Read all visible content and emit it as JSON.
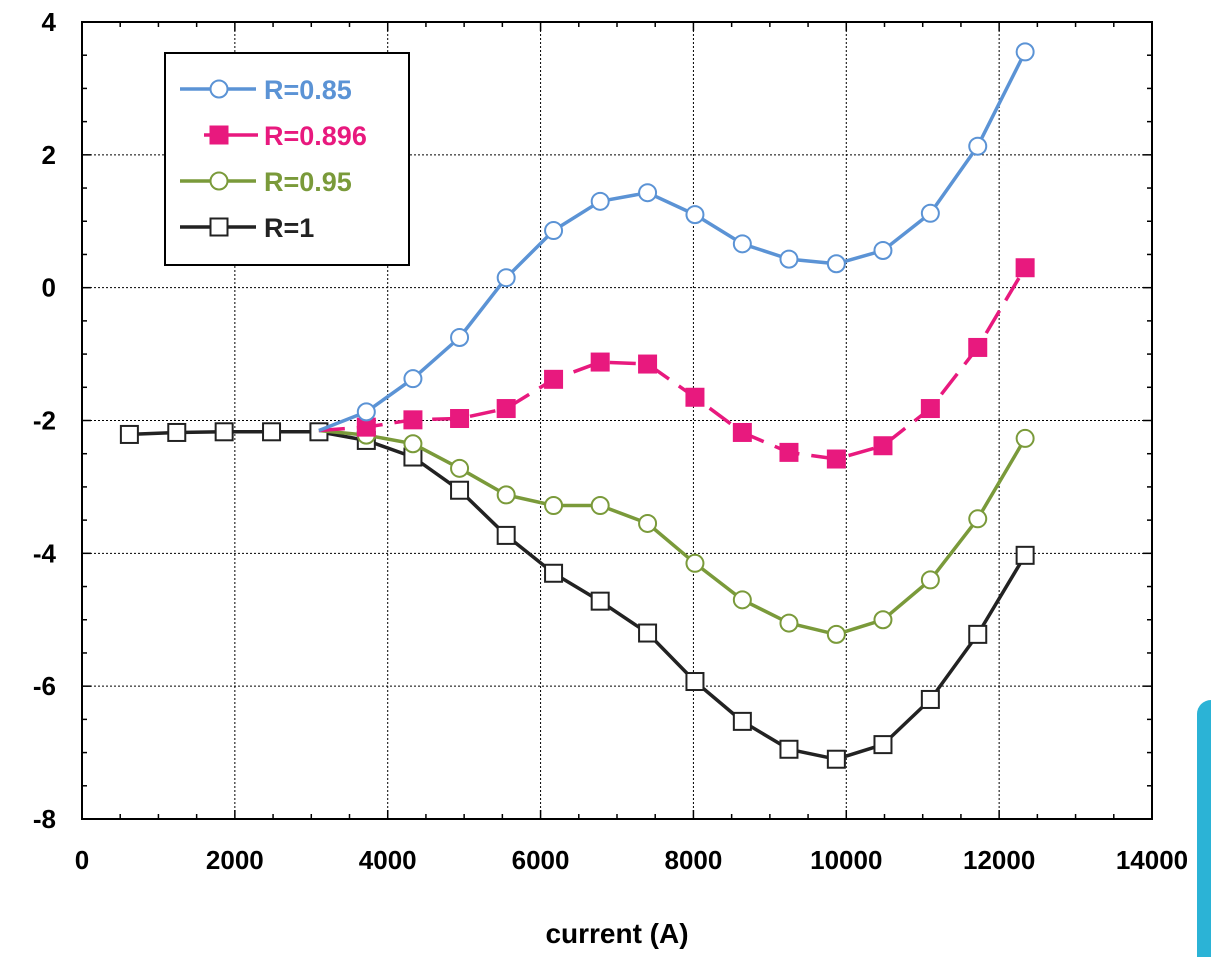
{
  "chart_data": {
    "type": "line",
    "title": "",
    "xlabel": "current (A)",
    "ylabel": "",
    "xlim": [
      0,
      14000
    ],
    "ylim": [
      -8,
      4
    ],
    "xticks": [
      0,
      2000,
      4000,
      6000,
      8000,
      10000,
      12000,
      14000
    ],
    "yticks": [
      -8,
      -6,
      -4,
      -2,
      0,
      2,
      4
    ],
    "grid": true,
    "legend_position": "top-left",
    "series": [
      {
        "name": "R=0.85",
        "color": "#5b93d5",
        "marker": "open-circle",
        "line_style": "solid",
        "points": [
          [
            3100,
            -2.15
          ],
          [
            3720,
            -1.87
          ],
          [
            4330,
            -1.37
          ],
          [
            4940,
            -0.75
          ],
          [
            5550,
            0.15
          ],
          [
            6170,
            0.86
          ],
          [
            6780,
            1.3
          ],
          [
            7400,
            1.43
          ],
          [
            8020,
            1.1
          ],
          [
            8640,
            0.66
          ],
          [
            9250,
            0.43
          ],
          [
            9870,
            0.36
          ],
          [
            10480,
            0.56
          ],
          [
            11100,
            1.12
          ],
          [
            11720,
            2.13
          ],
          [
            12340,
            3.55
          ]
        ]
      },
      {
        "name": "R=0.896",
        "color": "#e8197e",
        "marker": "filled-square",
        "line_style": "dashed",
        "points": [
          [
            3100,
            -2.15
          ],
          [
            3720,
            -2.1
          ],
          [
            4330,
            -1.99
          ],
          [
            4940,
            -1.97
          ],
          [
            5550,
            -1.82
          ],
          [
            6170,
            -1.38
          ],
          [
            6780,
            -1.12
          ],
          [
            7400,
            -1.15
          ],
          [
            8020,
            -1.65
          ],
          [
            8640,
            -2.18
          ],
          [
            9250,
            -2.48
          ],
          [
            9870,
            -2.58
          ],
          [
            10480,
            -2.38
          ],
          [
            11100,
            -1.82
          ],
          [
            11720,
            -0.9
          ],
          [
            12340,
            0.3
          ]
        ]
      },
      {
        "name": "R=0.95",
        "color": "#7a9a3a",
        "marker": "open-circle",
        "line_style": "solid",
        "points": [
          [
            3100,
            -2.15
          ],
          [
            3720,
            -2.22
          ],
          [
            4330,
            -2.35
          ],
          [
            4940,
            -2.72
          ],
          [
            5550,
            -3.12
          ],
          [
            6170,
            -3.28
          ],
          [
            6780,
            -3.28
          ],
          [
            7400,
            -3.55
          ],
          [
            8020,
            -4.15
          ],
          [
            8640,
            -4.7
          ],
          [
            9250,
            -5.05
          ],
          [
            9870,
            -5.22
          ],
          [
            10480,
            -5.0
          ],
          [
            11100,
            -4.4
          ],
          [
            11720,
            -3.48
          ],
          [
            12340,
            -2.27
          ]
        ]
      },
      {
        "name": "R=1",
        "color": "#222222",
        "marker": "open-square",
        "line_style": "solid",
        "points": [
          [
            620,
            -2.21
          ],
          [
            1240,
            -2.18
          ],
          [
            1860,
            -2.17
          ],
          [
            2480,
            -2.17
          ],
          [
            3100,
            -2.17
          ],
          [
            3720,
            -2.3
          ],
          [
            4330,
            -2.55
          ],
          [
            4940,
            -3.05
          ],
          [
            5550,
            -3.73
          ],
          [
            6170,
            -4.3
          ],
          [
            6780,
            -4.72
          ],
          [
            7400,
            -5.2
          ],
          [
            8020,
            -5.93
          ],
          [
            8640,
            -6.53
          ],
          [
            9250,
            -6.95
          ],
          [
            9870,
            -7.1
          ],
          [
            10480,
            -6.88
          ],
          [
            11100,
            -6.2
          ],
          [
            11720,
            -5.22
          ],
          [
            12340,
            -4.03
          ]
        ]
      }
    ]
  }
}
